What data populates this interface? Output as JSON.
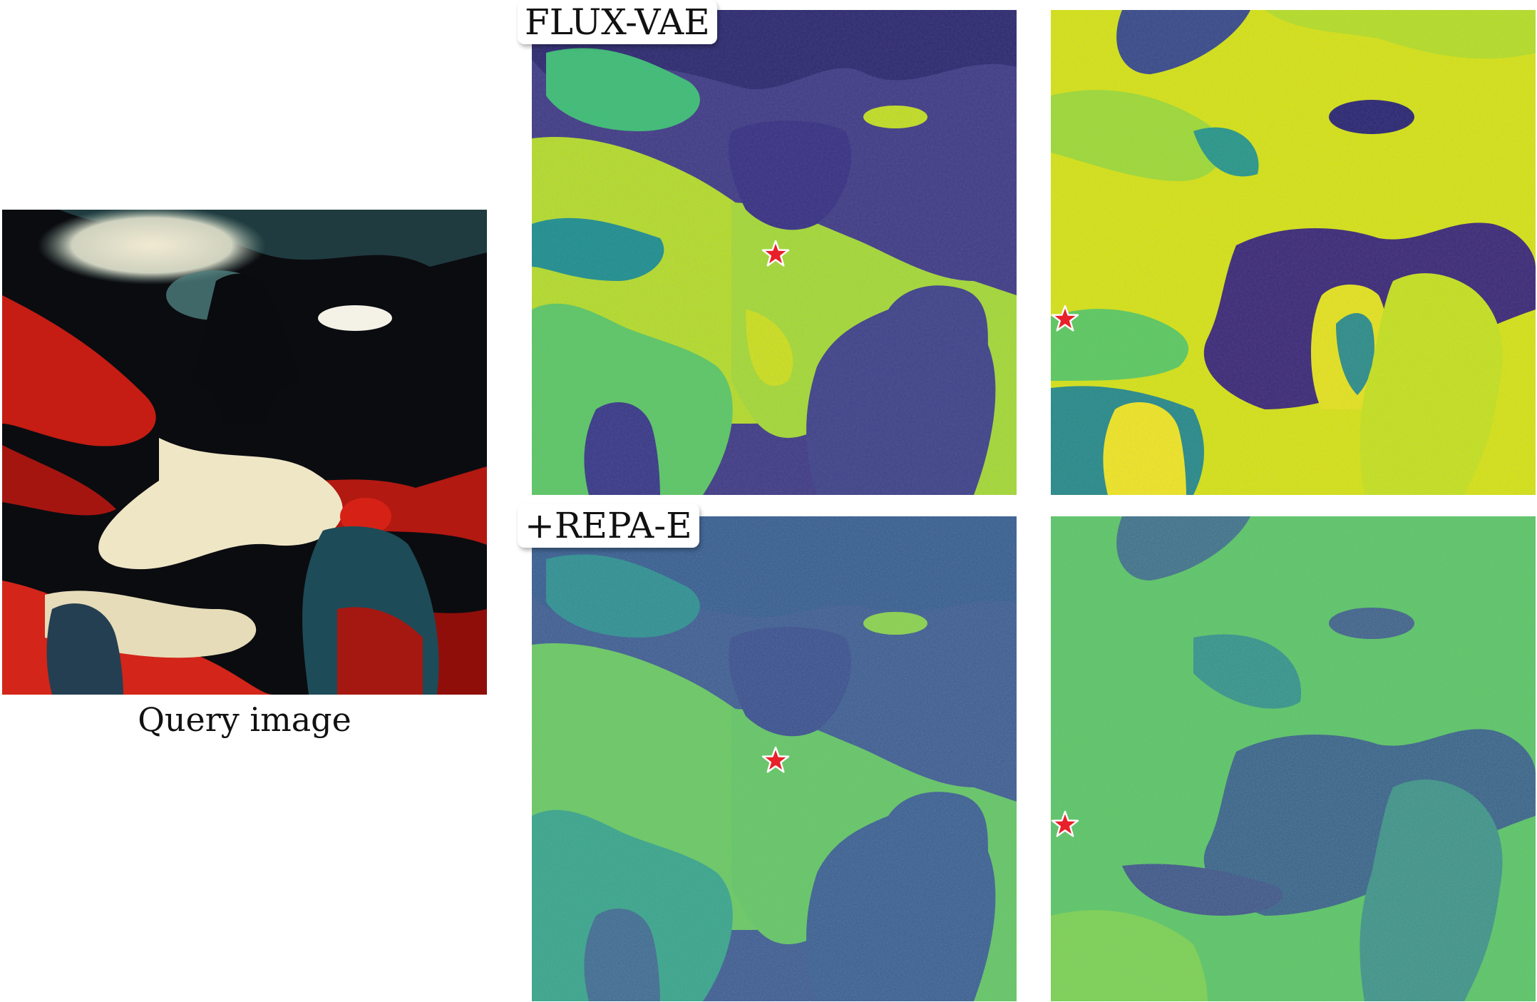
{
  "figure": {
    "query_caption": "Query image",
    "row_labels": [
      "FLUX-VAE",
      "+REPA-E"
    ],
    "colormap": "viridis",
    "colormap_stops": [
      "#440154",
      "#3b528b",
      "#21918c",
      "#5ec962",
      "#fde725"
    ],
    "star_color": "#e8202a",
    "star_icon": "star-icon"
  }
}
